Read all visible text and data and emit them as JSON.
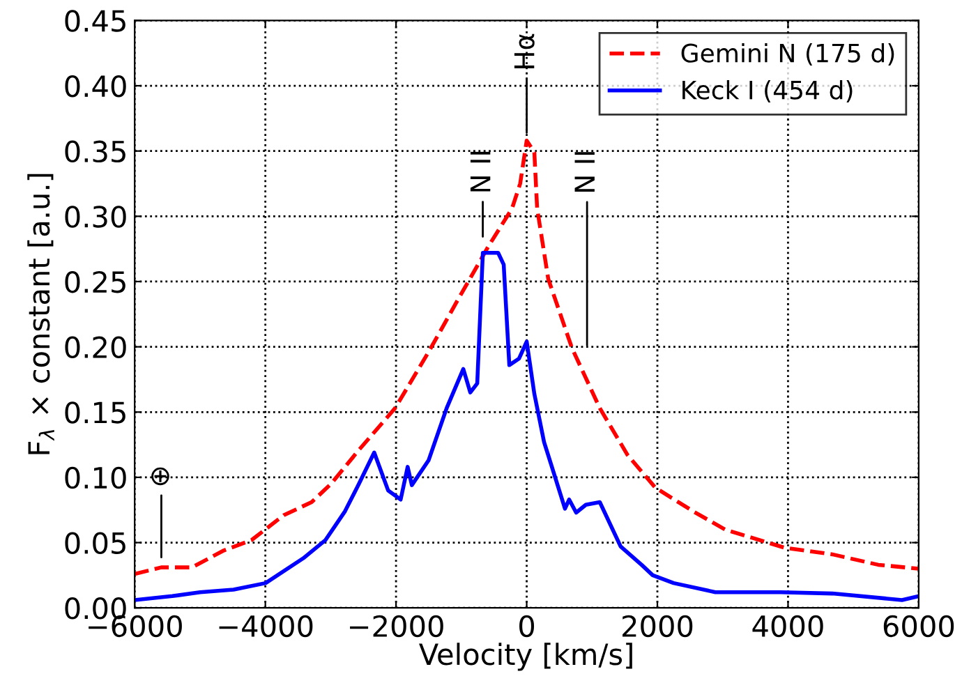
{
  "chart_data": {
    "type": "line",
    "xlabel": "Velocity [km/s]",
    "ylabel": "F$_{λ}$ × constant [a.u.]",
    "xlim": [
      -6000,
      6000
    ],
    "xticks": [
      {
        "value": -6000,
        "label": "−6000"
      },
      {
        "value": -4000,
        "label": "−4000"
      },
      {
        "value": -2000,
        "label": "−2000"
      },
      0,
      2000,
      4000,
      6000
    ],
    "ylim": [
      0,
      0.45
    ],
    "yticks": [
      {
        "value": 0,
        "label": "0.00"
      },
      0.05,
      {
        "value": 0.1,
        "label": "0.10"
      },
      0.15,
      {
        "value": 0.2,
        "label": "0.20"
      },
      0.25,
      {
        "value": 0.3,
        "label": "0.30"
      },
      0.35,
      {
        "value": 0.4,
        "label": "0.40"
      },
      0.45
    ],
    "grid": true,
    "legend": "top right",
    "series": [
      {
        "name": "Gemini N (175 d)",
        "color": "#ff0000",
        "line_style": "dashed",
        "x": [
          -6000,
          -5594,
          -5338,
          -5125,
          -4635,
          -4209,
          -3719,
          -3292,
          -2994,
          -2568,
          -2014,
          -1502,
          -1076,
          -586,
          -224,
          -100,
          0,
          117,
          160,
          330,
          693,
          1119,
          1545,
          1971,
          2547,
          3037,
          3953,
          4678,
          5381,
          6000
        ],
        "values": [
          0.026,
          0.031,
          0.031,
          0.031,
          0.044,
          0.052,
          0.071,
          0.081,
          0.095,
          0.121,
          0.153,
          0.196,
          0.234,
          0.277,
          0.306,
          0.325,
          0.358,
          0.349,
          0.306,
          0.252,
          0.199,
          0.153,
          0.117,
          0.092,
          0.074,
          0.06,
          0.046,
          0.041,
          0.033,
          0.03
        ]
      },
      {
        "name": "Keck I (454 d)",
        "color": "#0000ff",
        "line_style": "solid",
        "x": [
          -6000,
          -5424,
          -4998,
          -4486,
          -3996,
          -3420,
          -3079,
          -2781,
          -2568,
          -2334,
          -2121,
          -1929,
          -1822,
          -1758,
          -1502,
          -1225,
          -970,
          -863,
          -757,
          -671,
          -437,
          -352,
          -266,
          -117,
          0,
          117,
          266,
          373,
          586,
          650,
          757,
          906,
          1119,
          1438,
          1758,
          1929,
          2249,
          2888,
          3889,
          4678,
          5744,
          6000
        ],
        "values": [
          0.006,
          0.009,
          0.012,
          0.014,
          0.019,
          0.038,
          0.052,
          0.074,
          0.095,
          0.119,
          0.09,
          0.083,
          0.108,
          0.094,
          0.113,
          0.153,
          0.183,
          0.165,
          0.172,
          0.272,
          0.272,
          0.263,
          0.186,
          0.191,
          0.204,
          0.164,
          0.127,
          0.11,
          0.076,
          0.083,
          0.073,
          0.079,
          0.081,
          0.047,
          0.033,
          0.025,
          0.019,
          0.012,
          0.012,
          0.011,
          0.006,
          0.009
        ]
      }
    ],
    "annotations": [
      {
        "text": "Hα",
        "x": 0,
        "y": 0.358
      },
      "N II",
      "N II",
      "⊕"
    ]
  }
}
